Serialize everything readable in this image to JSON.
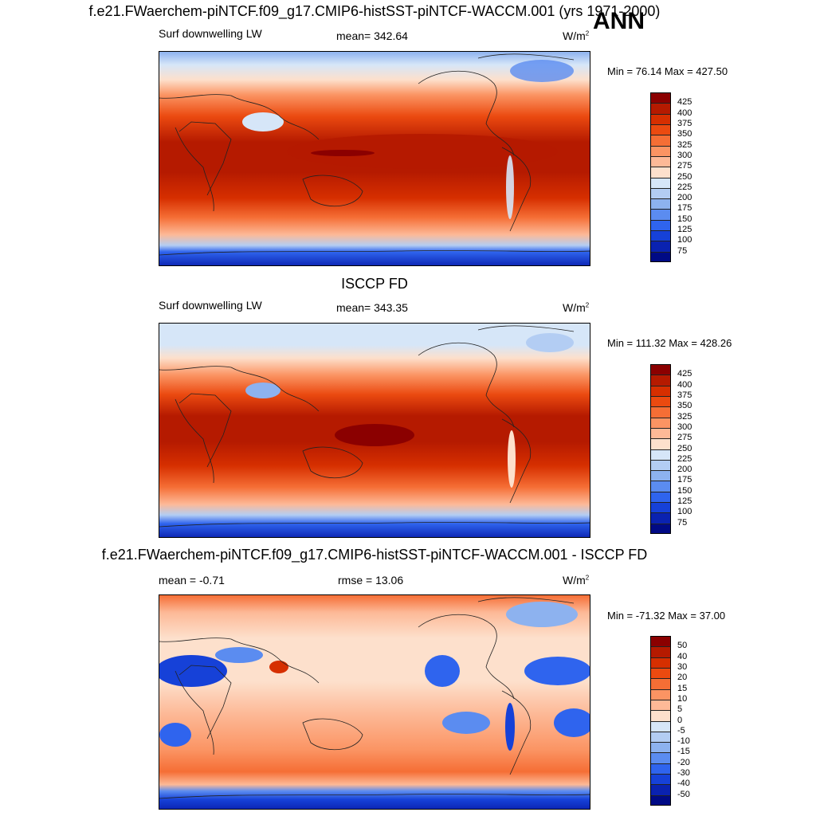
{
  "header": {
    "title": "f.e21.FWaerchem-piNTCF.f09_g17.CMIP6-histSST-piNTCF-WACCM.001 (yrs 1971-2000)",
    "season": "ANN"
  },
  "panels": [
    {
      "title": "",
      "variable": "Surf downwelling LW",
      "stat": "mean= 342.64",
      "units": "W/m",
      "units_sup": "2",
      "minmax": "Min =  76.14 Max = 427.50",
      "colorbar_labels": [
        "425",
        "400",
        "375",
        "350",
        "325",
        "300",
        "275",
        "250",
        "225",
        "200",
        "175",
        "150",
        "125",
        "100",
        "75"
      ],
      "colorbar_colors": [
        "#8b0000",
        "#b51a00",
        "#d62f00",
        "#eb4a10",
        "#f56e35",
        "#fb9463",
        "#fdb997",
        "#fde0cc",
        "#d6e6f8",
        "#b3cdf3",
        "#8db2ef",
        "#5b8cf0",
        "#2f64ee",
        "#1641d8",
        "#0a22b0",
        "#000a85"
      ]
    },
    {
      "title": "ISCCP FD",
      "variable": "Surf downwelling LW",
      "stat": "mean= 343.35",
      "units": "W/m",
      "units_sup": "2",
      "minmax": "Min = 111.32 Max = 428.26",
      "colorbar_labels": [
        "425",
        "400",
        "375",
        "350",
        "325",
        "300",
        "275",
        "250",
        "225",
        "200",
        "175",
        "150",
        "125",
        "100",
        "75"
      ],
      "colorbar_colors": [
        "#8b0000",
        "#b51a00",
        "#d62f00",
        "#eb4a10",
        "#f56e35",
        "#fb9463",
        "#fdb997",
        "#fde0cc",
        "#d6e6f8",
        "#b3cdf3",
        "#8db2ef",
        "#5b8cf0",
        "#2f64ee",
        "#1641d8",
        "#0a22b0",
        "#000a85"
      ]
    },
    {
      "title": "f.e21.FWaerchem-piNTCF.f09_g17.CMIP6-histSST-piNTCF-WACCM.001 - ISCCP FD",
      "variable": "mean =  -0.71",
      "stat": "rmse =  13.06",
      "units": "W/m",
      "units_sup": "2",
      "minmax": "Min = -71.32 Max =  37.00",
      "colorbar_labels": [
        "50",
        "40",
        "30",
        "20",
        "15",
        "10",
        "5",
        "0",
        "-5",
        "-10",
        "-15",
        "-20",
        "-30",
        "-40",
        "-50"
      ],
      "colorbar_colors": [
        "#8b0000",
        "#b51a00",
        "#d62f00",
        "#eb4a10",
        "#f56e35",
        "#fb9463",
        "#fdb997",
        "#fde0cc",
        "#d6e6f8",
        "#b3cdf3",
        "#8db2ef",
        "#5b8cf0",
        "#2f64ee",
        "#1641d8",
        "#0a22b0",
        "#000a85"
      ]
    }
  ]
}
